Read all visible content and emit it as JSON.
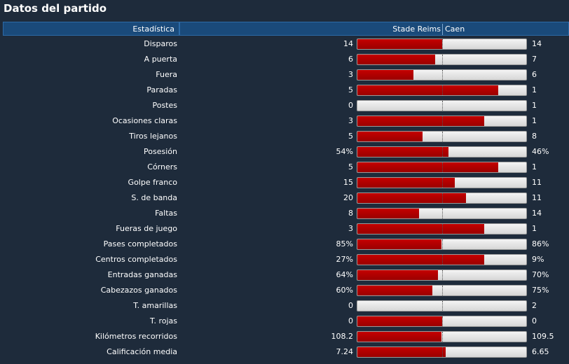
{
  "title": "Datos del partido",
  "header": {
    "stat_label": "Estadística",
    "home_team": "Stade Reims",
    "away_team": "Caen"
  },
  "colors": {
    "background": "#1e2b3b",
    "header": "#1a4a7a",
    "home_bar": "#b30000",
    "away_bar": "#e0e0e0"
  },
  "stats": [
    {
      "label": "Disparos",
      "home": "14",
      "away": "14",
      "home_share": 0.5
    },
    {
      "label": "A puerta",
      "home": "6",
      "away": "7",
      "home_share": 0.4615
    },
    {
      "label": "Fuera",
      "home": "3",
      "away": "6",
      "home_share": 0.3333
    },
    {
      "label": "Paradas",
      "home": "5",
      "away": "1",
      "home_share": 0.8333
    },
    {
      "label": "Postes",
      "home": "0",
      "away": "1",
      "home_share": 0
    },
    {
      "label": "Ocasiones claras",
      "home": "3",
      "away": "1",
      "home_share": 0.75
    },
    {
      "label": "Tiros lejanos",
      "home": "5",
      "away": "8",
      "home_share": 0.3846
    },
    {
      "label": "Posesión",
      "home": "54%",
      "away": "46%",
      "home_share": 0.54
    },
    {
      "label": "Córners",
      "home": "5",
      "away": "1",
      "home_share": 0.8333
    },
    {
      "label": "Golpe franco",
      "home": "15",
      "away": "11",
      "home_share": 0.5769
    },
    {
      "label": "S. de banda",
      "home": "20",
      "away": "11",
      "home_share": 0.6452
    },
    {
      "label": "Faltas",
      "home": "8",
      "away": "14",
      "home_share": 0.3636
    },
    {
      "label": "Fueras de juego",
      "home": "3",
      "away": "1",
      "home_share": 0.75
    },
    {
      "label": "Pases completados",
      "home": "85%",
      "away": "86%",
      "home_share": 0.4971
    },
    {
      "label": "Centros completados",
      "home": "27%",
      "away": "9%",
      "home_share": 0.75
    },
    {
      "label": "Entradas ganadas",
      "home": "64%",
      "away": "70%",
      "home_share": 0.4776
    },
    {
      "label": "Cabezazos ganados",
      "home": "60%",
      "away": "75%",
      "home_share": 0.4444
    },
    {
      "label": "T. amarillas",
      "home": "0",
      "away": "2",
      "home_share": 0
    },
    {
      "label": "T. rojas",
      "home": "0",
      "away": "0",
      "home_share": 0.5
    },
    {
      "label": "Kilómetros recorridos",
      "home": "108.2",
      "away": "109.5",
      "home_share": 0.497
    },
    {
      "label": "Calificación media",
      "home": "7.24",
      "away": "6.65",
      "home_share": 0.5212
    }
  ]
}
